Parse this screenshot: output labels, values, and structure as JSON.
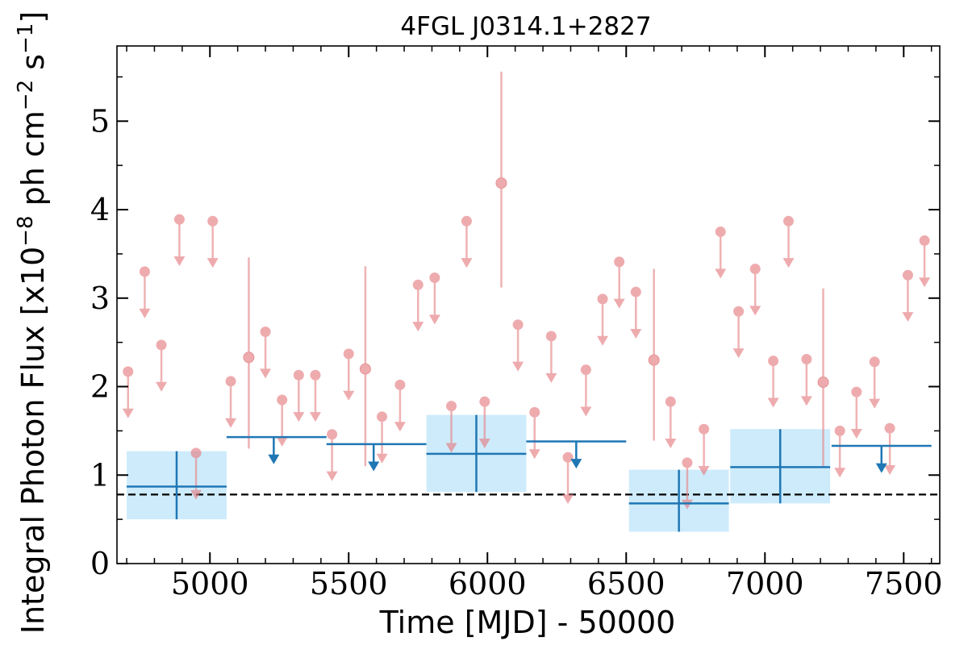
{
  "chart_data": {
    "type": "scatter",
    "title": "4FGL J0314.1+2827",
    "xlabel": "Time [MJD] - 50000",
    "ylabel_prefix": "Integral Photon Flux [x10",
    "ylabel_exp1": "−8",
    "ylabel_mid": " ph cm",
    "ylabel_exp2": "−2",
    "ylabel_mid2": " s",
    "ylabel_exp3": "−1",
    "ylabel_suffix": "]",
    "xlim": [
      4665,
      7630
    ],
    "ylim": [
      0,
      5.85
    ],
    "x_ticks": [
      5000,
      5500,
      6000,
      6500,
      7000,
      7500
    ],
    "x_tick_labels": [
      "5000",
      "5500",
      "6000",
      "6500",
      "7000",
      "7500"
    ],
    "y_ticks": [
      0,
      1,
      2,
      3,
      4,
      5
    ],
    "y_tick_labels": [
      "0",
      "1",
      "2",
      "3",
      "4",
      "5"
    ],
    "reference_line": {
      "y": 0.78,
      "style": "dashed"
    },
    "colors": {
      "monthly": "#e8898c",
      "monthly_fill": "#e57f84",
      "yearly": "#1f77b4",
      "yearly_band": "#cdebfb",
      "reference": "#000000"
    },
    "series": [
      {
        "points": [
          {
            "x": 5140,
            "y": 2.33,
            "lo": 1.3,
            "hi": 3.46
          },
          {
            "x": 5560,
            "y": 2.2,
            "lo": 1.1,
            "hi": 3.36
          },
          {
            "x": 6050,
            "y": 4.3,
            "lo": 3.12,
            "hi": 5.56
          },
          {
            "x": 6600,
            "y": 2.3,
            "lo": 1.39,
            "hi": 3.33
          },
          {
            "x": 7210,
            "y": 2.05,
            "lo": 1.1,
            "hi": 3.11
          }
        ],
        "upper_limits": [
          {
            "x": 4705,
            "y": 2.17
          },
          {
            "x": 4765,
            "y": 3.3
          },
          {
            "x": 4825,
            "y": 2.47
          },
          {
            "x": 4890,
            "y": 3.89
          },
          {
            "x": 4950,
            "y": 1.25
          },
          {
            "x": 5010,
            "y": 3.87
          },
          {
            "x": 5075,
            "y": 2.06
          },
          {
            "x": 5200,
            "y": 2.62
          },
          {
            "x": 5260,
            "y": 1.85
          },
          {
            "x": 5320,
            "y": 2.13
          },
          {
            "x": 5380,
            "y": 2.13
          },
          {
            "x": 5440,
            "y": 1.46
          },
          {
            "x": 5500,
            "y": 2.37
          },
          {
            "x": 5620,
            "y": 1.66
          },
          {
            "x": 5685,
            "y": 2.02
          },
          {
            "x": 5750,
            "y": 3.15
          },
          {
            "x": 5810,
            "y": 3.23
          },
          {
            "x": 5870,
            "y": 1.78
          },
          {
            "x": 5925,
            "y": 3.87
          },
          {
            "x": 5990,
            "y": 1.83
          },
          {
            "x": 6110,
            "y": 2.7
          },
          {
            "x": 6170,
            "y": 1.71
          },
          {
            "x": 6230,
            "y": 2.57
          },
          {
            "x": 6290,
            "y": 1.2
          },
          {
            "x": 6355,
            "y": 2.19
          },
          {
            "x": 6415,
            "y": 2.99
          },
          {
            "x": 6475,
            "y": 3.41
          },
          {
            "x": 6535,
            "y": 3.07
          },
          {
            "x": 6660,
            "y": 1.83
          },
          {
            "x": 6720,
            "y": 1.14
          },
          {
            "x": 6780,
            "y": 1.52
          },
          {
            "x": 6840,
            "y": 3.75
          },
          {
            "x": 6905,
            "y": 2.85
          },
          {
            "x": 6965,
            "y": 3.33
          },
          {
            "x": 7030,
            "y": 2.29
          },
          {
            "x": 7085,
            "y": 3.87
          },
          {
            "x": 7150,
            "y": 2.31
          },
          {
            "x": 7270,
            "y": 1.5
          },
          {
            "x": 7330,
            "y": 1.94
          },
          {
            "x": 7395,
            "y": 2.28
          },
          {
            "x": 7450,
            "y": 1.53
          },
          {
            "x": 7515,
            "y": 3.26
          },
          {
            "x": 7575,
            "y": 3.65
          }
        ]
      },
      {
        "points": [
          {
            "x0": 4700,
            "x1": 5060,
            "xc": 4880,
            "y": 0.87,
            "lo": 0.5,
            "hi": 1.27
          },
          {
            "x0": 5780,
            "x1": 6140,
            "xc": 5960,
            "y": 1.24,
            "lo": 0.81,
            "hi": 1.68
          },
          {
            "x0": 6510,
            "x1": 6870,
            "xc": 6690,
            "y": 0.68,
            "lo": 0.36,
            "hi": 1.06
          },
          {
            "x0": 6875,
            "x1": 7235,
            "xc": 7055,
            "y": 1.09,
            "lo": 0.68,
            "hi": 1.52
          }
        ],
        "upper_limits": [
          {
            "x0": 5060,
            "x1": 5420,
            "y": 1.43,
            "arrow_x": 5230
          },
          {
            "x0": 5420,
            "x1": 5780,
            "y": 1.35,
            "arrow_x": 5590
          },
          {
            "x0": 6140,
            "x1": 6500,
            "y": 1.38,
            "arrow_x": 6320
          },
          {
            "x0": 7240,
            "x1": 7600,
            "y": 1.33,
            "arrow_x": 7420
          }
        ]
      }
    ]
  }
}
